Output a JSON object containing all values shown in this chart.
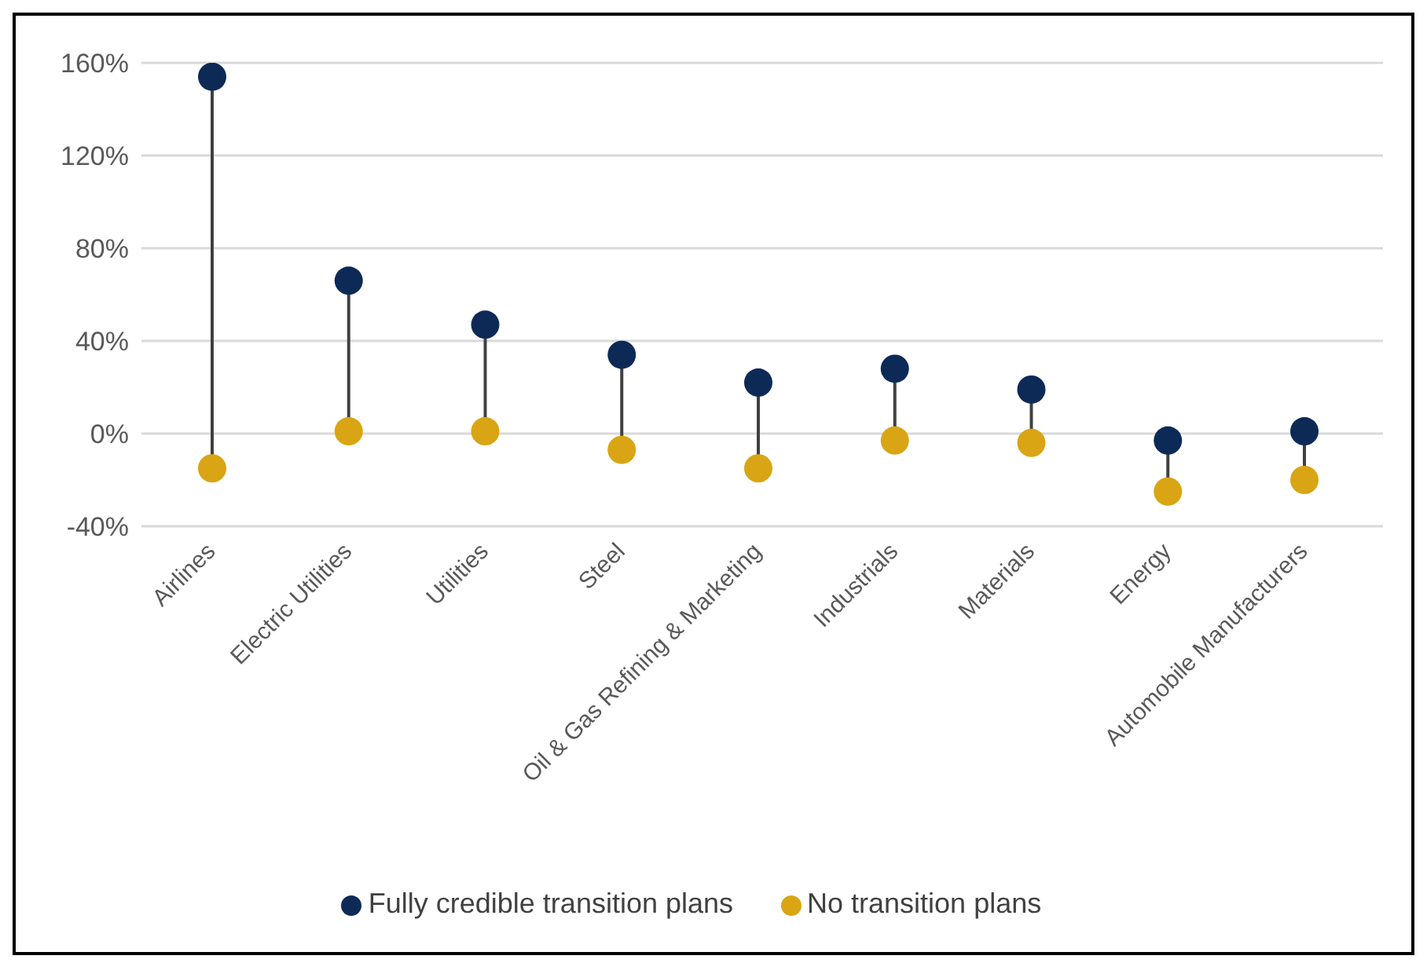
{
  "chart_data": {
    "type": "scatter",
    "categories": [
      "Airlines",
      "Electric Utilities",
      "Utilities",
      "Steel",
      "Oil & Gas Refining & Marketing",
      "Industrials",
      "Materials",
      "Energy",
      "Automobile Manufacturers"
    ],
    "series": [
      {
        "name": "No transition plans",
        "color": "#d9a514",
        "values": [
          -15,
          1,
          1,
          -7,
          -15,
          -3,
          -4,
          -25,
          -20
        ]
      },
      {
        "name": "Fully credible transition plans",
        "color": "#0d2a57",
        "values": [
          154,
          66,
          47,
          34,
          22,
          28,
          19,
          -3,
          1
        ]
      }
    ],
    "ylim": [
      -40,
      160
    ],
    "yticks": [
      {
        "value": -40,
        "label": "-40%"
      },
      {
        "value": 0,
        "label": "0%"
      },
      {
        "value": 40,
        "label": "40%"
      },
      {
        "value": 80,
        "label": "80%"
      },
      {
        "value": 120,
        "label": "120%"
      },
      {
        "value": 160,
        "label": "160%"
      }
    ],
    "grid": "y",
    "legend": "bottom",
    "marker": "circle"
  }
}
